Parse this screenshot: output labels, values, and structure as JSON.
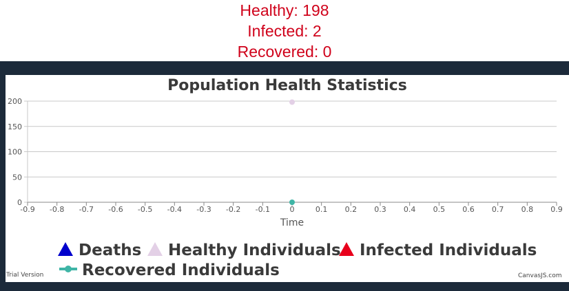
{
  "stats": {
    "healthy": "Healthy: 198",
    "infected": "Infected: 2",
    "recovered": "Recovered: 0"
  },
  "chart_data": {
    "type": "scatter",
    "title": "Population Health Statistics",
    "xlabel": "Time",
    "ylabel": "",
    "xlim": [
      -0.9,
      0.9
    ],
    "ylim": [
      0,
      200
    ],
    "x_ticks": [
      "-0.9",
      "-0.8",
      "-0.7",
      "-0.6",
      "-0.5",
      "-0.4",
      "-0.3",
      "-0.2",
      "-0.1",
      "0",
      "0.1",
      "0.2",
      "0.3",
      "0.4",
      "0.5",
      "0.6",
      "0.7",
      "0.8",
      "0.9"
    ],
    "y_ticks": [
      "0",
      "50",
      "100",
      "150",
      "200"
    ],
    "grid": true,
    "legend_position": "bottom",
    "series": [
      {
        "name": "Deaths",
        "marker": "triangle",
        "color": "#0000cc",
        "points": [
          {
            "x": 0,
            "y": 0
          }
        ]
      },
      {
        "name": "Healthy Individuals",
        "marker": "triangle",
        "color": "#e3d0e6",
        "points": [
          {
            "x": 0,
            "y": 198
          }
        ]
      },
      {
        "name": "Infected Individuals",
        "marker": "triangle",
        "color": "#e8001c",
        "points": [
          {
            "x": 0,
            "y": 2
          }
        ]
      },
      {
        "name": "Recovered Individuals",
        "marker": "line-circle",
        "color": "#3fb5a6",
        "points": [
          {
            "x": 0,
            "y": 0
          }
        ]
      }
    ]
  },
  "footer": {
    "trial": "Trial Version",
    "brand": "CanvasJS.com"
  },
  "colors": {
    "stats_text": "#d0021b",
    "frame": "#1c2a3a"
  }
}
